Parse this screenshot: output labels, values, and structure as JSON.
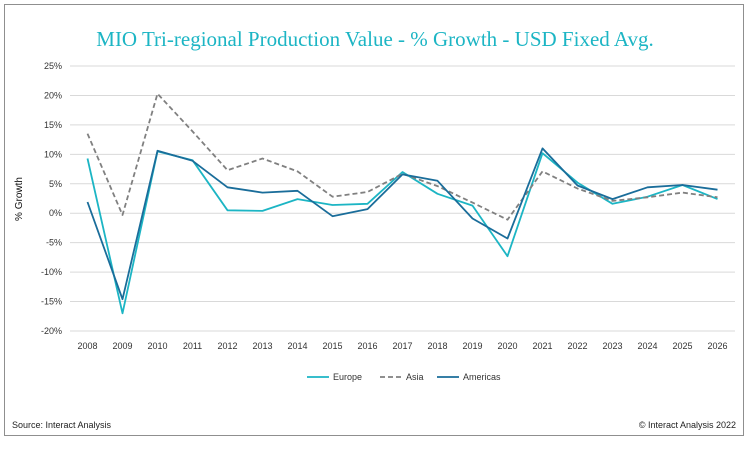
{
  "chart_data": {
    "type": "line",
    "title": "MIO Tri-regional Production Value - % Growth - USD Fixed Avg.",
    "ylabel": "% Growth",
    "xlabel": "",
    "ylim": [
      -20,
      25
    ],
    "yticks": [
      25,
      20,
      15,
      10,
      5,
      0,
      -5,
      -10,
      -15,
      -20
    ],
    "ytick_labels": [
      "25%",
      "20%",
      "15%",
      "10%",
      "5%",
      "0%",
      "-5%",
      "-10%",
      "-15%",
      "-20%"
    ],
    "grid": "horizontal",
    "legend_position": "bottom",
    "categories": [
      "2008",
      "2009",
      "2010",
      "2011",
      "2012",
      "2013",
      "2014",
      "2015",
      "2016",
      "2017",
      "2018",
      "2019",
      "2020",
      "2021",
      "2022",
      "2023",
      "2024",
      "2025",
      "2026"
    ],
    "series": [
      {
        "name": "Europe",
        "color": "#1cb5c4",
        "dash": "solid",
        "values": [
          9.3,
          -17.0,
          10.5,
          9.0,
          0.5,
          0.4,
          2.4,
          1.4,
          1.6,
          7.0,
          3.3,
          1.3,
          -7.3,
          10.2,
          5.2,
          1.6,
          2.8,
          4.8,
          2.4
        ]
      },
      {
        "name": "Asia",
        "color": "#808080",
        "dash": "dashed",
        "values": [
          13.5,
          -0.3,
          20.3,
          13.9,
          7.3,
          9.3,
          7.1,
          2.8,
          3.6,
          6.7,
          4.6,
          1.8,
          -1.1,
          7.1,
          4.2,
          2.1,
          2.7,
          3.5,
          2.7
        ]
      },
      {
        "name": "Americas",
        "color": "#1a6d9a",
        "dash": "solid",
        "values": [
          1.9,
          -14.6,
          10.6,
          8.9,
          4.4,
          3.5,
          3.8,
          -0.5,
          0.7,
          6.6,
          5.5,
          -0.9,
          -4.3,
          11.0,
          4.7,
          2.4,
          4.4,
          4.8,
          4.0
        ]
      }
    ]
  },
  "footer": {
    "source": "Source: Interact Analysis",
    "copyright": "© Interact Analysis 2022"
  }
}
